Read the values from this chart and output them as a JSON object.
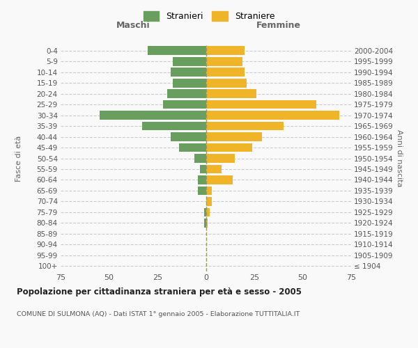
{
  "age_groups": [
    "100+",
    "95-99",
    "90-94",
    "85-89",
    "80-84",
    "75-79",
    "70-74",
    "65-69",
    "60-64",
    "55-59",
    "50-54",
    "45-49",
    "40-44",
    "35-39",
    "30-34",
    "25-29",
    "20-24",
    "15-19",
    "10-14",
    "5-9",
    "0-4"
  ],
  "birth_years": [
    "≤ 1904",
    "1905-1909",
    "1910-1914",
    "1915-1919",
    "1920-1924",
    "1925-1929",
    "1930-1934",
    "1935-1939",
    "1940-1944",
    "1945-1949",
    "1950-1954",
    "1955-1959",
    "1960-1964",
    "1965-1969",
    "1970-1974",
    "1975-1979",
    "1980-1984",
    "1985-1989",
    "1990-1994",
    "1995-1999",
    "2000-2004"
  ],
  "maschi": [
    0,
    0,
    0,
    0,
    1,
    1,
    0,
    4,
    4,
    3,
    6,
    14,
    18,
    33,
    55,
    22,
    20,
    17,
    18,
    17,
    30
  ],
  "femmine": [
    0,
    0,
    0,
    0,
    1,
    2,
    3,
    3,
    14,
    8,
    15,
    24,
    29,
    40,
    69,
    57,
    26,
    21,
    20,
    19,
    20
  ],
  "maschi_color": "#6a9e5f",
  "femmine_color": "#f0b429",
  "background_color": "#f9f9f9",
  "grid_color": "#cccccc",
  "title": "Popolazione per cittadinanza straniera per età e sesso - 2005",
  "subtitle": "COMUNE DI SULMONA (AQ) - Dati ISTAT 1° gennaio 2005 - Elaborazione TUTTITALIA.IT",
  "ylabel_left": "Fasce di età",
  "ylabel_right": "Anni di nascita",
  "xlabel_left": "Maschi",
  "xlabel_right": "Femmine",
  "legend_stranieri": "Stranieri",
  "legend_straniere": "Straniere",
  "xlim": 75
}
